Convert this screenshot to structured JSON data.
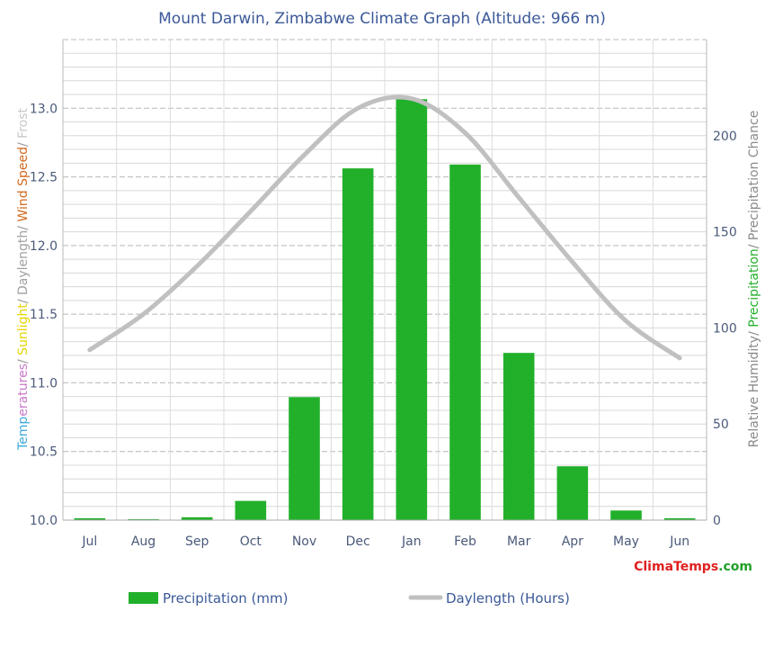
{
  "chart_data": {
    "type": "bar",
    "title": "Mount Darwin, Zimbabwe Climate Graph (Altitude: 966 m)",
    "categories": [
      "Jul",
      "Aug",
      "Sep",
      "Oct",
      "Nov",
      "Dec",
      "Jan",
      "Feb",
      "Mar",
      "Apr",
      "May",
      "Jun"
    ],
    "series": [
      {
        "name": "Precipitation (mm)",
        "type": "bar",
        "axis": "right",
        "color": "#22b02a",
        "values": [
          1,
          0.5,
          1.5,
          10,
          64,
          183,
          219,
          185,
          87,
          28,
          5,
          1
        ]
      },
      {
        "name": "Daylength (Hours)",
        "type": "line",
        "axis": "left",
        "color": "#c0c0c0",
        "values": [
          11.24,
          11.5,
          11.85,
          12.25,
          12.66,
          13.0,
          13.07,
          12.82,
          12.35,
          11.88,
          11.45,
          11.18
        ]
      }
    ],
    "left_axis": {
      "ylim": [
        10.0,
        13.5
      ],
      "ticks": [
        "10.0",
        "10.5",
        "11.0",
        "11.5",
        "12.0",
        "12.5",
        "13.0"
      ],
      "label_parts": [
        {
          "text": "Temp",
          "color": "#3fa9d9"
        },
        {
          "text": "eratures",
          "color": "#c879c8"
        },
        {
          "text": "/ ",
          "color": "#999999"
        },
        {
          "text": "Sunlight",
          "color": "#e8d400"
        },
        {
          "text": "/ ",
          "color": "#999999"
        },
        {
          "text": "Daylength",
          "color": "#a0a0a0"
        },
        {
          "text": "/ ",
          "color": "#999999"
        },
        {
          "text": "Wind Speed",
          "color": "#d2691e"
        },
        {
          "text": "/ ",
          "color": "#999999"
        },
        {
          "text": "Frost",
          "color": "#c8c8c8"
        }
      ]
    },
    "right_axis": {
      "ylim": [
        0,
        250
      ],
      "ticks": [
        "0",
        "50",
        "100",
        "150",
        "200"
      ],
      "label_parts": [
        {
          "text": "Relative Humidity",
          "color": "#8a8a8a"
        },
        {
          "text": "/ ",
          "color": "#8a8a8a"
        },
        {
          "text": "Precipitation",
          "color": "#22b02a"
        },
        {
          "text": "/ ",
          "color": "#8a8a8a"
        },
        {
          "text": "Precipitation Chance",
          "color": "#8a8a8a"
        }
      ]
    },
    "grid": true,
    "legend": {
      "placement": "bottom"
    }
  },
  "brand": {
    "parts": [
      {
        "text": "Clima",
        "color": "#e02020"
      },
      {
        "text": "Temps",
        "color": "#e02020"
      },
      {
        "text": ".com",
        "color": "#22a02a"
      }
    ]
  }
}
